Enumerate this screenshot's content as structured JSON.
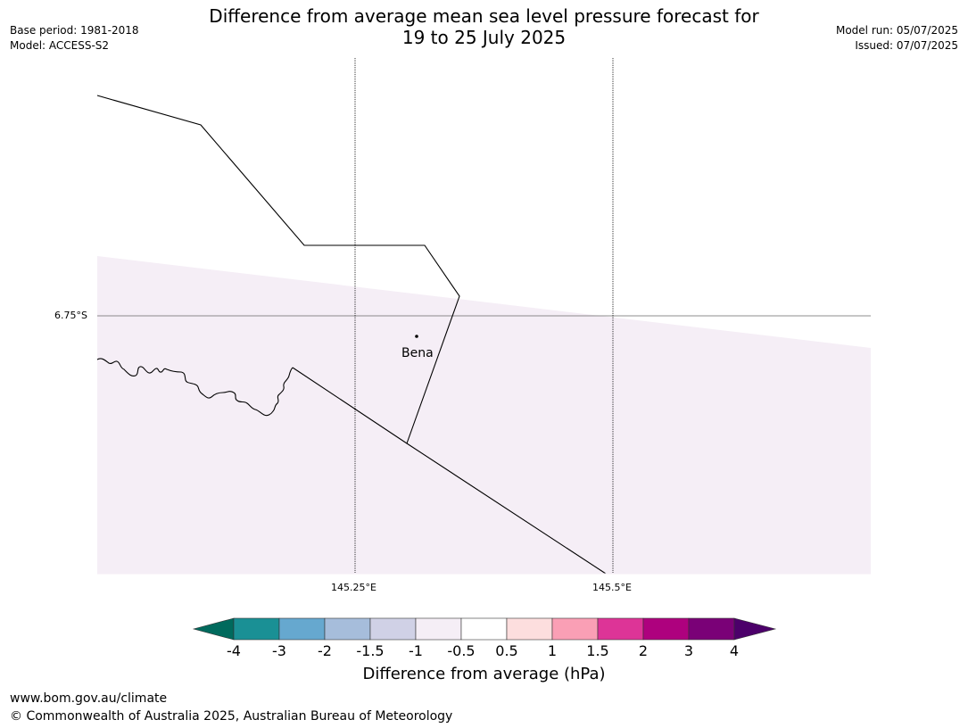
{
  "title": {
    "line1": "Difference from average mean sea level pressure forecast for",
    "line2": "19 to 25 July 2025"
  },
  "meta_left": {
    "base_period": "Base period: 1981-2018",
    "model": "Model: ACCESS-S2"
  },
  "meta_right": {
    "model_run": "Model run: 05/07/2025",
    "issued": "Issued: 07/07/2025"
  },
  "map": {
    "latitude_labels": [
      "6.75°S"
    ],
    "longitude_labels": [
      "145.25°E",
      "145.5°E"
    ],
    "places": [
      {
        "name": "Bena"
      }
    ],
    "shading_color": "#f5eef6"
  },
  "colorbar": {
    "label": "Difference from average (hPa)",
    "ticks": [
      "-4",
      "-3",
      "-2",
      "-1.5",
      "-1",
      "-0.5",
      "0.5",
      "1",
      "1.5",
      "2",
      "3",
      "4"
    ],
    "under_color": "#006a5d",
    "over_color": "#4c006a",
    "colors": [
      "#1a9095",
      "#66a8cf",
      "#a6bddb",
      "#d0d1e6",
      "#f5eef6",
      "#ffffff",
      "#fddede",
      "#fa9fb5",
      "#dd3497",
      "#ae017e",
      "#7a0177"
    ]
  },
  "footer": {
    "url": "www.bom.gov.au/climate",
    "copyright": "© Commonwealth of Australia 2025, Australian Bureau of Meteorology"
  }
}
